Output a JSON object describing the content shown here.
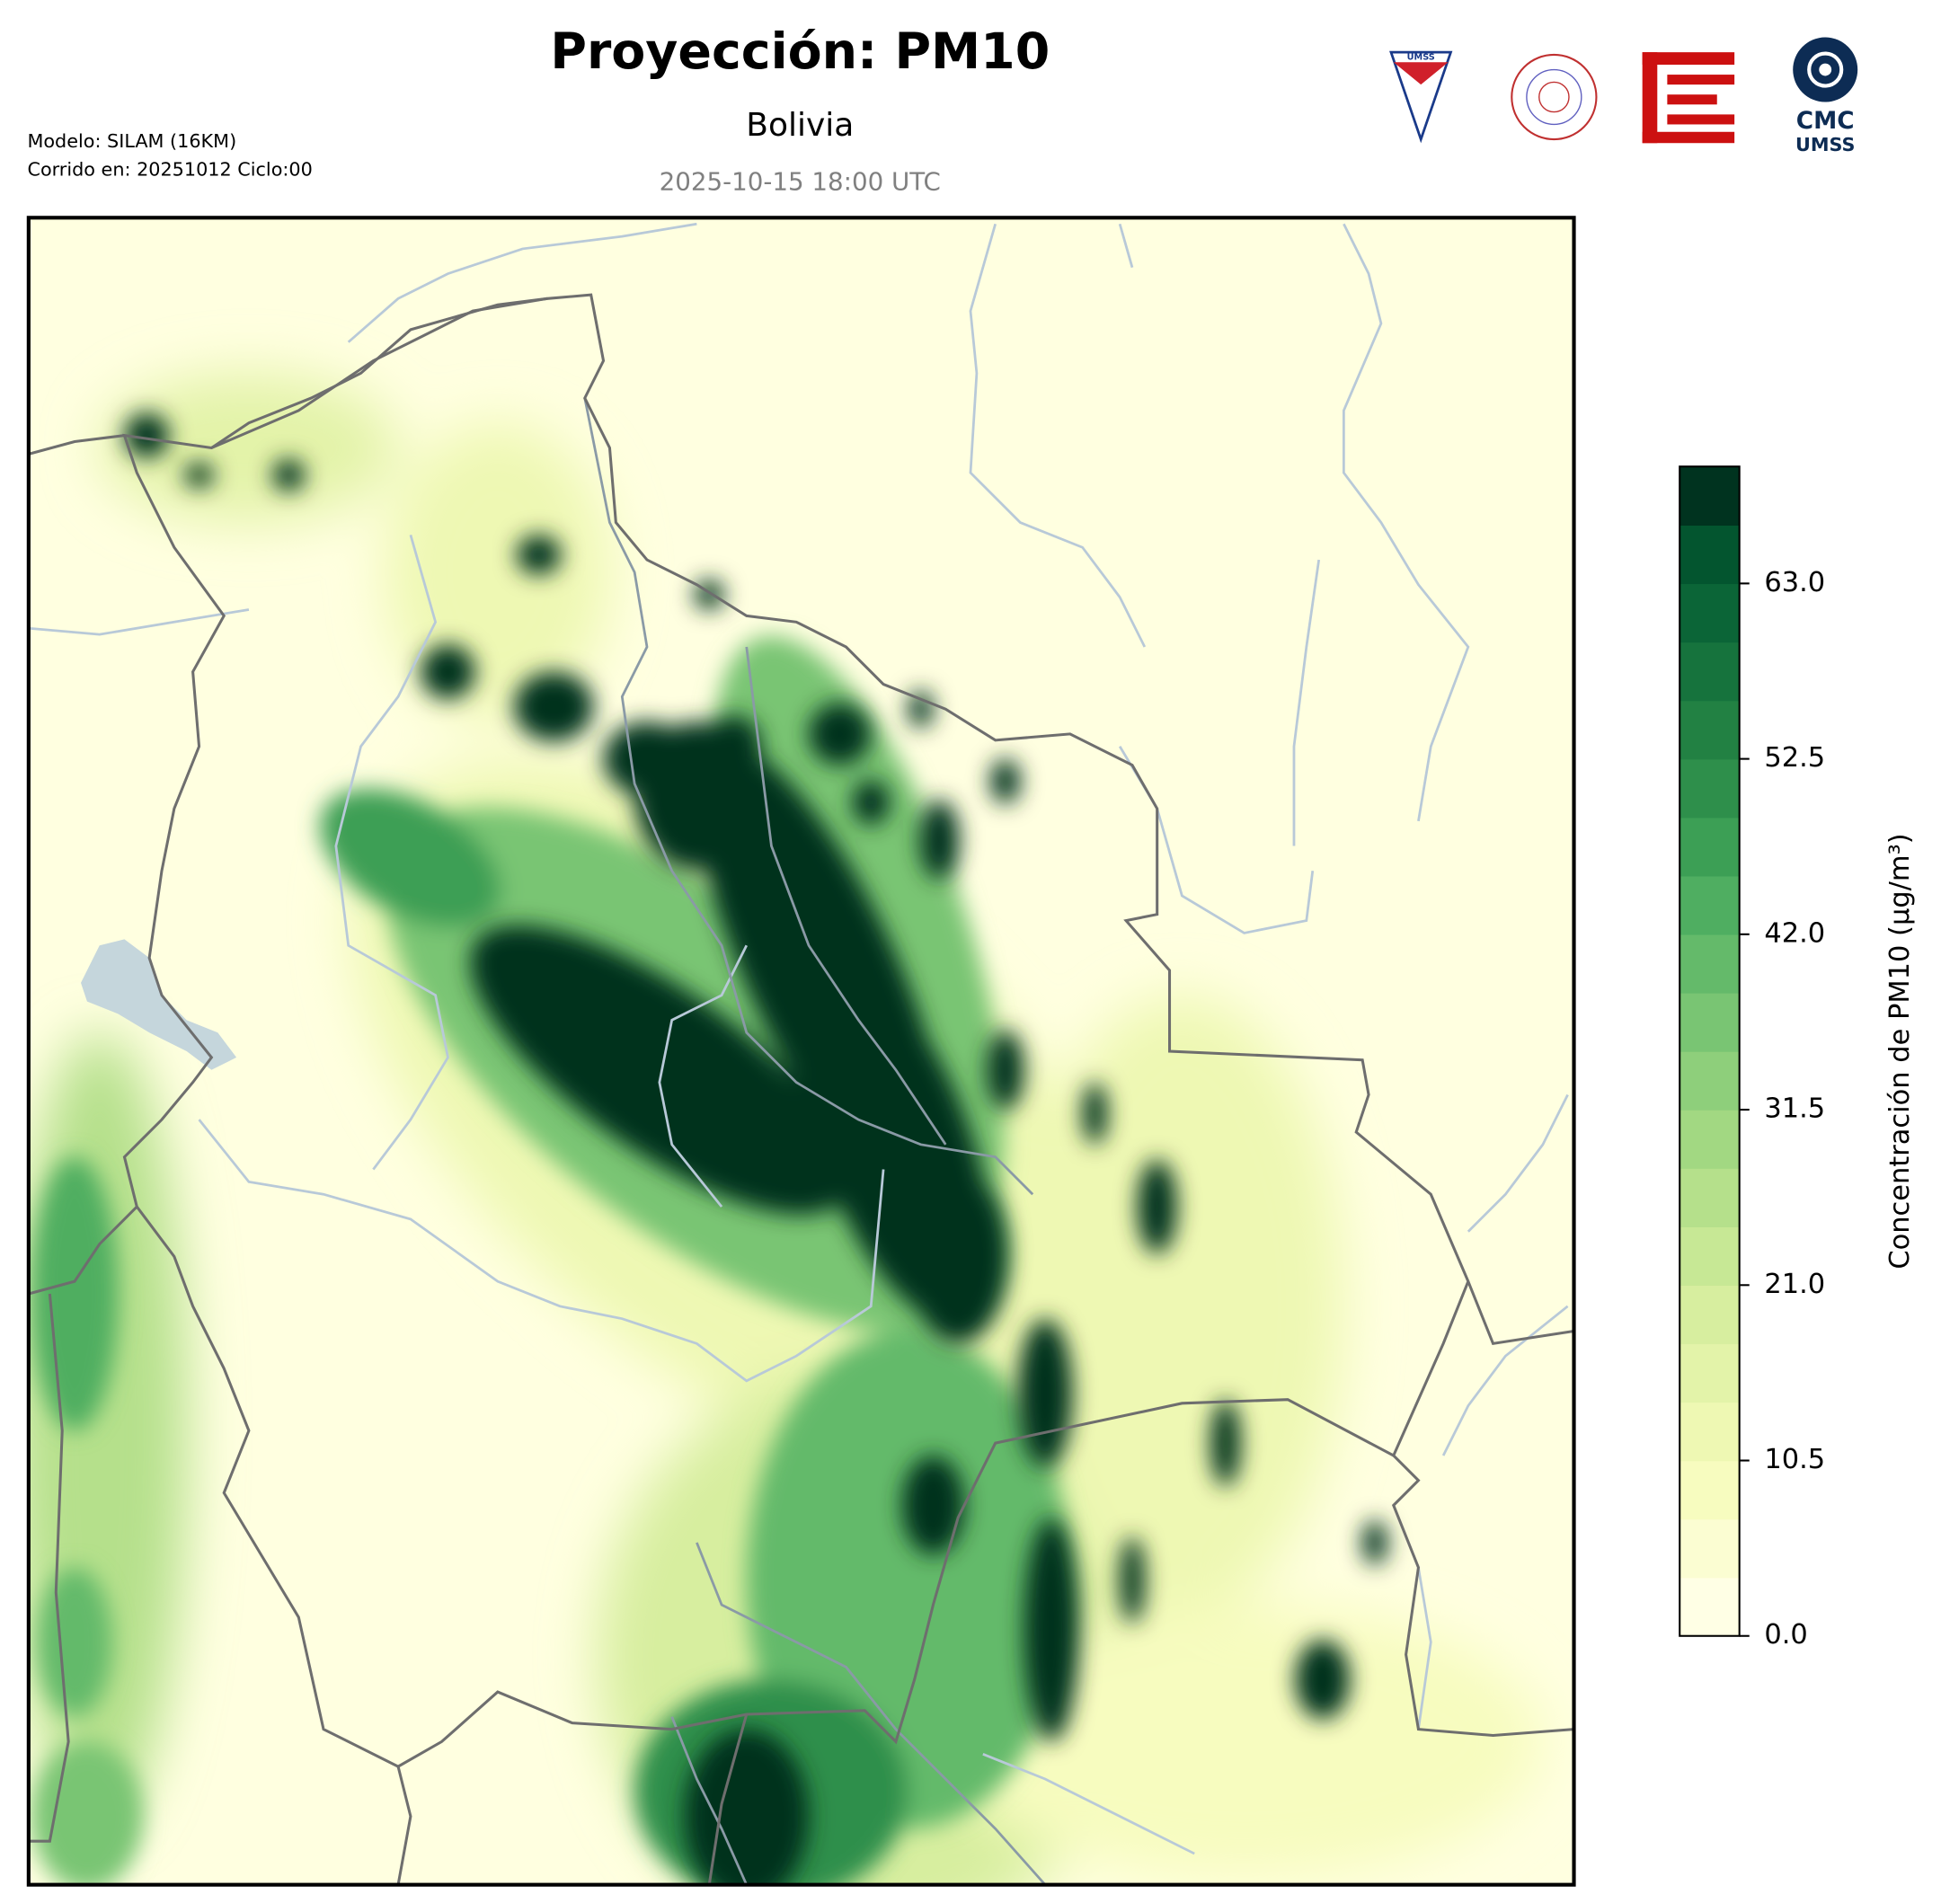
{
  "header": {
    "title": "Proyección: PM10",
    "subtitle": "Bolivia",
    "valid_time": "2025-10-15 18:00 UTC",
    "model": "Modelo: SILAM (16KM)",
    "run": "Corrido en: 20251012 Ciclo:00"
  },
  "logos": {
    "shield": "UMSS",
    "cmc": "CMC",
    "cmc_sub": "UMSS"
  },
  "chart_data": {
    "type": "contour",
    "label": "Concentración de PM10 (µg/m³)",
    "ylim": [
      0,
      70
    ],
    "yticks": [
      {
        "value": 0,
        "label": "0.0"
      },
      10.5,
      {
        "value": 21,
        "label": "21.0"
      },
      31.5,
      {
        "value": 42,
        "label": "42.0"
      },
      52.5,
      {
        "value": 63,
        "label": "63.0"
      }
    ],
    "colors": [
      "#ffffe5",
      "#fbfdd2",
      "#f7fcbf",
      "#eef8b3",
      "#e3f3a9",
      "#d7ee9f",
      "#c7e895",
      "#b5e08b",
      "#a2d882",
      "#8ecf7b",
      "#79c573",
      "#64ba6a",
      "#4fae61",
      "#3c9f55",
      "#2e8f4b",
      "#228143",
      "#16733d",
      "#0b6537",
      "#03552f",
      "#00331f"
    ]
  }
}
